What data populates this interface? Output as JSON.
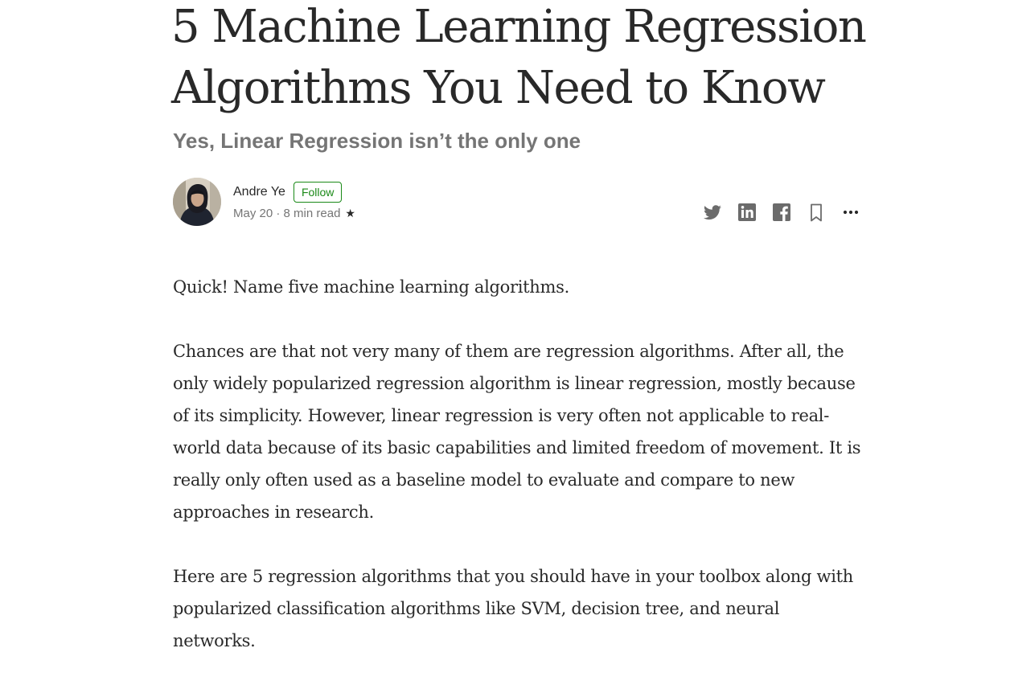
{
  "article": {
    "title": "5 Machine Learning Regression Algorithms You Need to Know",
    "subtitle": "Yes, Linear Regression isn’t the only one",
    "author": {
      "name": "Andre Ye",
      "follow_label": "Follow",
      "date": "May 20",
      "separator": " · ",
      "read_time": "8 min read",
      "member_star": "★"
    },
    "share_icons": [
      "twitter-icon",
      "linkedin-icon",
      "facebook-icon",
      "bookmark-icon",
      "more-icon"
    ],
    "paragraphs": [
      "Quick! Name five machine learning algorithms.",
      "Chances are that not very many of them are regression algorithms. After all, the only widely popularized regression algorithm is linear regression, mostly because of its simplicity. However, linear regression is very often not applicable to real-world data because of its basic capabilities and limited freedom of movement. It is really only often used as a baseline model to evaluate and compare to new approaches in research.",
      "Here are 5 regression algorithms that you should have in your toolbox along with popularized classification algorithms like SVM, decision tree, and neural networks."
    ]
  },
  "colors": {
    "text": "#292929",
    "muted": "#757575",
    "follow_green": "#1a8917"
  }
}
